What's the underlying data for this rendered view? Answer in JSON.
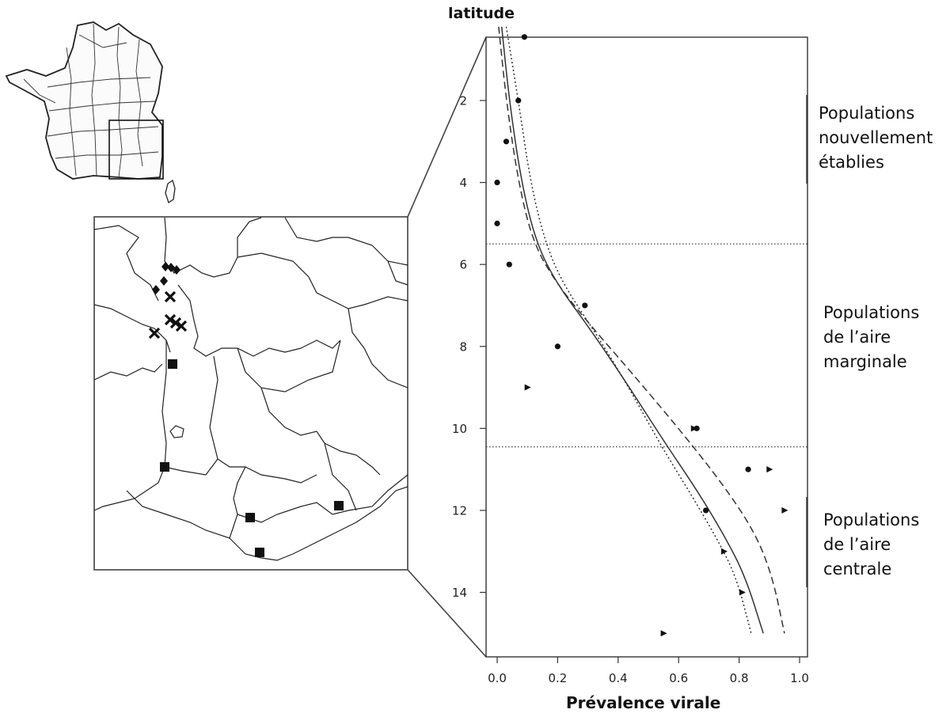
{
  "chart_data": {
    "type": "scatter",
    "ylabel": "latitude",
    "xlabel": "Prévalence virale",
    "xlim": [
      0,
      1
    ],
    "ylim": [
      0.5,
      15.5
    ],
    "y_inverted": true,
    "x_ticks": [
      "0.0",
      "0.2",
      "0.4",
      "0.6",
      "0.8",
      "1.0"
    ],
    "y_ticks": [
      "2",
      "4",
      "6",
      "8",
      "10",
      "12",
      "14"
    ],
    "bands": [
      {
        "name": "Populations nouvellement établies",
        "lines": [
          "Populations",
          "nouvellement",
          "établies"
        ]
      },
      {
        "name": "Populations de l’aire marginale",
        "lines": [
          "Populations",
          "de l’aire",
          "marginale"
        ]
      },
      {
        "name": "Populations de l’aire centrale",
        "lines": [
          "Populations",
          "de l’aire",
          "centrale"
        ]
      }
    ],
    "band_boundaries": [
      5.5,
      10.45
    ],
    "series": [
      {
        "marker": "circle",
        "points": [
          [
            0.09,
            0.45
          ],
          [
            0.07,
            2.0
          ],
          [
            0.03,
            3.0
          ],
          [
            0.0,
            4.0
          ],
          [
            0.0,
            5.0
          ],
          [
            0.04,
            6.0
          ],
          [
            0.29,
            7.0
          ],
          [
            0.2,
            8.0
          ],
          [
            0.66,
            10.0
          ],
          [
            0.83,
            11.0
          ],
          [
            0.69,
            12.0
          ]
        ]
      },
      {
        "marker": "triangle",
        "points": [
          [
            0.1,
            9.0
          ],
          [
            0.65,
            10.0
          ],
          [
            0.9,
            11.0
          ],
          [
            0.95,
            12.0
          ],
          [
            0.75,
            13.0
          ],
          [
            0.81,
            14.0
          ],
          [
            0.55,
            15.0
          ]
        ]
      }
    ],
    "curves": [
      {
        "style": "solid",
        "points": [
          [
            0.015,
            0.2
          ],
          [
            0.04,
            2.0
          ],
          [
            0.08,
            4.0
          ],
          [
            0.13,
            5.5
          ],
          [
            0.2,
            6.5
          ],
          [
            0.3,
            7.5
          ],
          [
            0.42,
            8.8
          ],
          [
            0.55,
            10.3
          ],
          [
            0.66,
            11.5
          ],
          [
            0.75,
            12.6
          ],
          [
            0.82,
            13.6
          ],
          [
            0.88,
            15.0
          ]
        ]
      },
      {
        "style": "dashed",
        "points": [
          [
            0.005,
            0.2
          ],
          [
            0.03,
            2.0
          ],
          [
            0.07,
            4.0
          ],
          [
            0.12,
            5.5
          ],
          [
            0.2,
            6.5
          ],
          [
            0.31,
            7.5
          ],
          [
            0.44,
            8.6
          ],
          [
            0.6,
            10.0
          ],
          [
            0.74,
            11.3
          ],
          [
            0.85,
            12.5
          ],
          [
            0.91,
            13.6
          ],
          [
            0.95,
            15.0
          ]
        ]
      },
      {
        "style": "dotted",
        "points": [
          [
            0.03,
            0.2
          ],
          [
            0.07,
            2.0
          ],
          [
            0.11,
            4.0
          ],
          [
            0.16,
            5.5
          ],
          [
            0.22,
            6.5
          ],
          [
            0.31,
            7.5
          ],
          [
            0.42,
            8.8
          ],
          [
            0.54,
            10.4
          ],
          [
            0.64,
            11.6
          ],
          [
            0.72,
            12.6
          ],
          [
            0.79,
            13.6
          ],
          [
            0.84,
            15.0
          ]
        ]
      }
    ]
  },
  "map_markers": {
    "diamond": [
      [
        209,
        337
      ],
      [
        216,
        338
      ],
      [
        223,
        341
      ],
      [
        207,
        355
      ],
      [
        197,
        366
      ]
    ],
    "cross": [
      [
        215,
        375
      ],
      [
        215,
        404
      ],
      [
        222,
        408
      ],
      [
        229,
        412
      ],
      [
        195,
        421
      ]
    ],
    "square": [
      [
        218,
        460
      ],
      [
        208,
        590
      ],
      [
        316,
        654
      ],
      [
        428,
        639
      ],
      [
        328,
        698
      ]
    ]
  }
}
